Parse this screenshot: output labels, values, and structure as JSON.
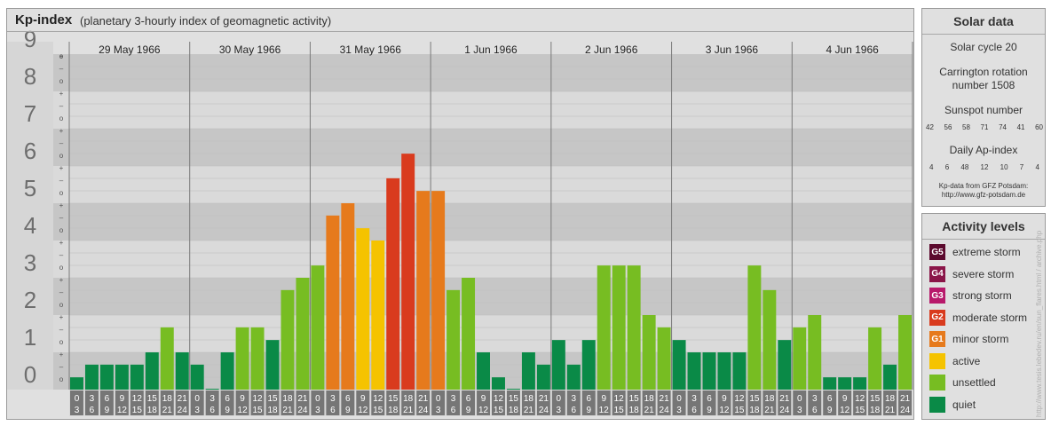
{
  "header": {
    "title": "Kp-index",
    "subtitle": "(planetary 3-hourly index of geomagnetic activity)"
  },
  "chart_data": {
    "type": "bar",
    "y_ticks": [
      "0",
      "1",
      "2",
      "3",
      "4",
      "5",
      "6",
      "7",
      "8",
      "9"
    ],
    "sub_ticks": [
      "o",
      "–",
      "+"
    ],
    "ylim": [
      0,
      9
    ],
    "days": [
      "29 May 1966",
      "30 May 1966",
      "31 May 1966",
      "1 Jun 1966",
      "2 Jun 1966",
      "3 Jun 1966",
      "4 Jun 1966"
    ],
    "interval_labels": [
      [
        "0",
        "3"
      ],
      [
        "3",
        "6"
      ],
      [
        "6",
        "9"
      ],
      [
        "9",
        "12"
      ],
      [
        "12",
        "15"
      ],
      [
        "15",
        "18"
      ],
      [
        "18",
        "21"
      ],
      [
        "21",
        "24"
      ]
    ],
    "values": [
      0.33,
      0.67,
      0.67,
      0.67,
      0.67,
      1.0,
      1.67,
      1.0,
      0.67,
      0.0,
      1.0,
      1.67,
      1.67,
      1.33,
      2.67,
      3.0,
      3.33,
      4.67,
      5.0,
      4.33,
      4.0,
      5.67,
      6.33,
      5.33,
      5.33,
      2.67,
      3.0,
      1.0,
      0.33,
      0.0,
      1.0,
      0.67,
      1.33,
      0.67,
      1.33,
      3.33,
      3.33,
      3.33,
      2.0,
      1.67,
      1.33,
      1.0,
      1.0,
      1.0,
      1.0,
      3.33,
      2.67,
      1.33,
      1.67,
      2.0,
      0.33,
      0.33,
      0.33,
      1.67,
      0.67,
      2.0
    ],
    "colors": {
      "quiet": "#0a8a47",
      "unsettled": "#77bd22",
      "active": "#f5c300",
      "G1": "#e67a1c",
      "G2": "#d93b1e",
      "G3": "#b8196b",
      "G4": "#8a1548",
      "G5": "#5c0a2e"
    }
  },
  "solar": {
    "title": "Solar data",
    "cycle": "Solar cycle 20",
    "carrington_line1": "Carrington rotation",
    "carrington_line2": "number 1508",
    "sunspot_label": "Sunspot number",
    "sunspot_values": [
      "42",
      "56",
      "58",
      "71",
      "74",
      "41",
      "60"
    ],
    "ap_label": "Daily Ap-index",
    "ap_values": [
      "4",
      "6",
      "48",
      "12",
      "10",
      "7",
      "4"
    ],
    "source_line1": "Kp-data from GFZ Potsdam:",
    "source_line2": "http://www.gfz-potsdam.de"
  },
  "activity": {
    "title": "Activity levels",
    "items": [
      {
        "badge": "G5",
        "label": "extreme storm",
        "color": "#5c0a2e"
      },
      {
        "badge": "G4",
        "label": "severe storm",
        "color": "#8a1548"
      },
      {
        "badge": "G3",
        "label": "strong storm",
        "color": "#b8196b"
      },
      {
        "badge": "G2",
        "label": "moderate storm",
        "color": "#d93b1e"
      },
      {
        "badge": "G1",
        "label": "minor storm",
        "color": "#e67a1c"
      },
      {
        "badge": "",
        "label": "active",
        "color": "#f5c300"
      },
      {
        "badge": "",
        "label": "unsettled",
        "color": "#77bd22"
      },
      {
        "badge": "",
        "label": "quiet",
        "color": "#0a8a47"
      }
    ]
  },
  "watermark": "http://www.tesis.lebedev.ru/en/sun_flares.html / archive.php"
}
